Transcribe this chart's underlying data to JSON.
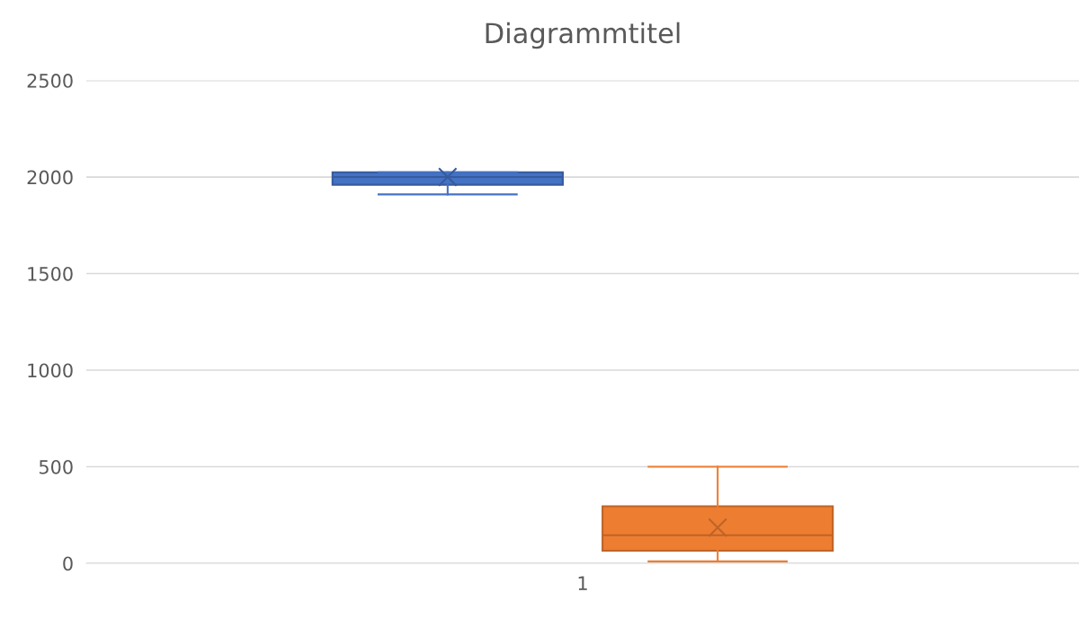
{
  "chart_data": {
    "type": "box",
    "title": "Diagrammtitel",
    "categories": [
      "1"
    ],
    "ylim": [
      0,
      2500
    ],
    "yticks": [
      0,
      500,
      1000,
      1500,
      2000,
      2500
    ],
    "grid": "y",
    "legend": false,
    "series": [
      {
        "color": "#4472c4",
        "boxes": [
          {
            "low": 1910,
            "q1": 1960,
            "median": 2000,
            "q3": 2025,
            "high": 2025,
            "mean": 2000
          }
        ]
      },
      {
        "color": "#ed7d31",
        "boxes": [
          {
            "low": 10,
            "q1": 65,
            "median": 145,
            "q3": 295,
            "high": 500,
            "mean": 185
          }
        ]
      }
    ]
  }
}
